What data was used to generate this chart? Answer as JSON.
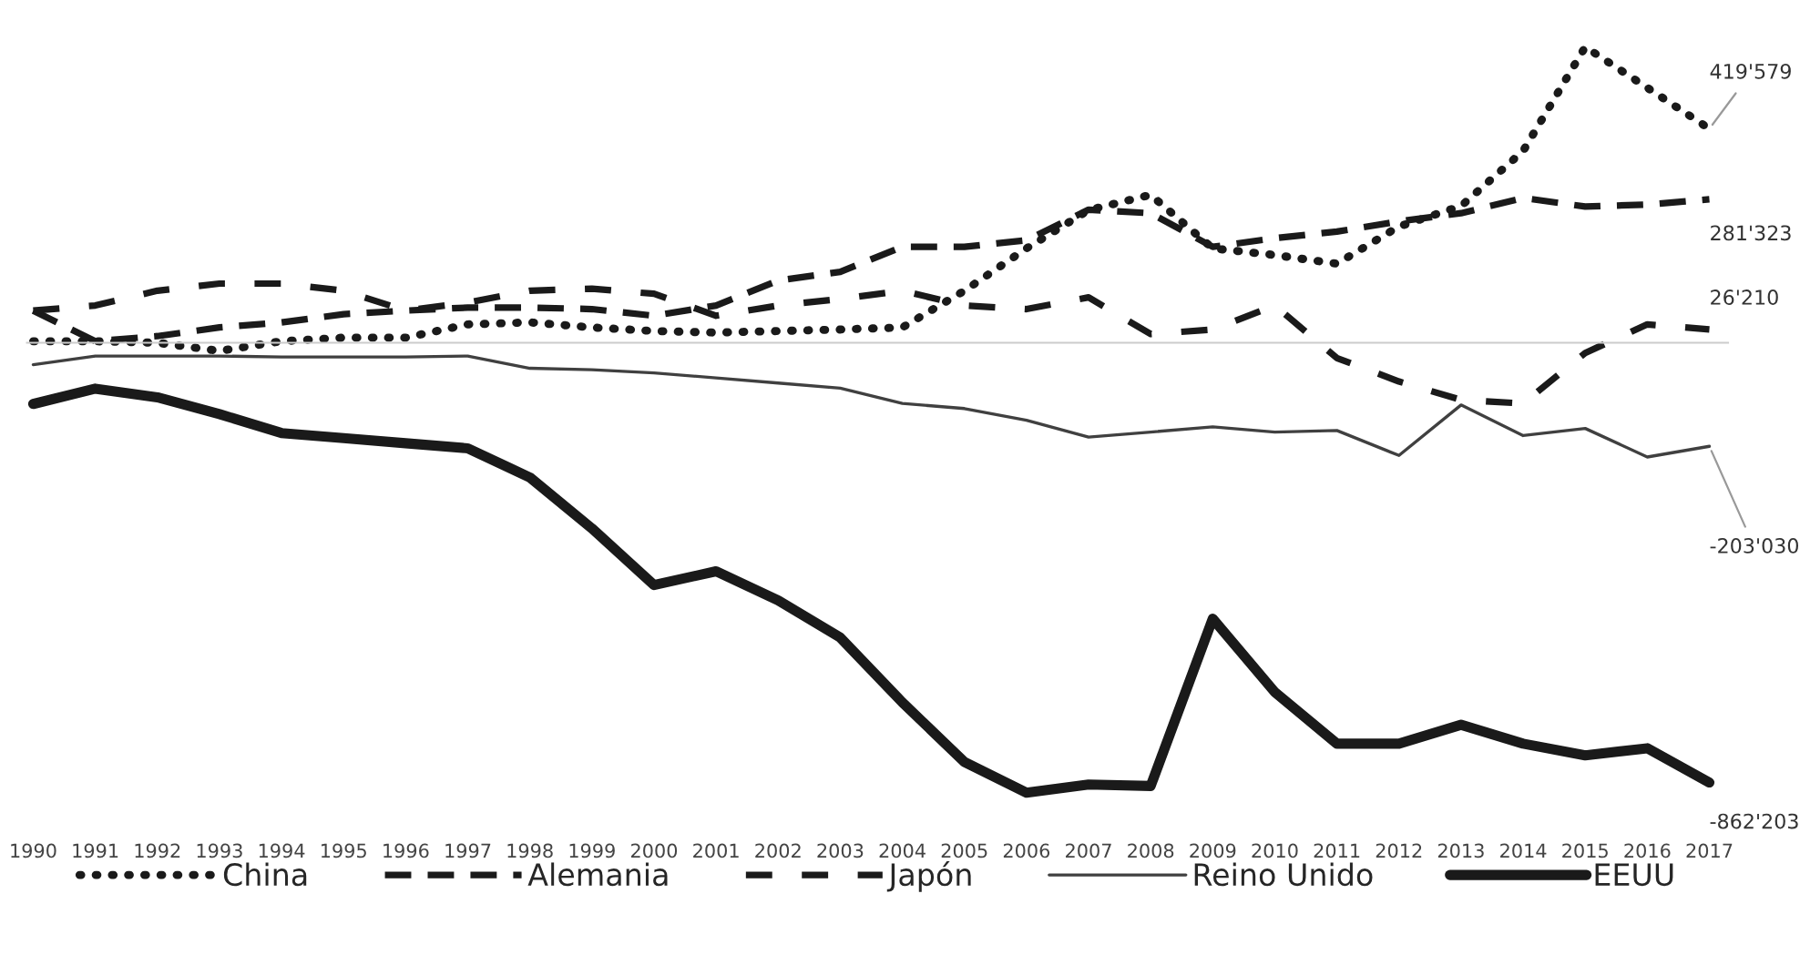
{
  "chart_data": {
    "type": "line",
    "categories": [
      "1990",
      "1991",
      "1992",
      "1993",
      "1994",
      "1995",
      "1996",
      "1997",
      "1998",
      "1999",
      "2000",
      "2001",
      "2002",
      "2003",
      "2004",
      "2005",
      "2006",
      "2007",
      "2008",
      "2009",
      "2010",
      "2011",
      "2012",
      "2013",
      "2014",
      "2015",
      "2016",
      "2017"
    ],
    "series": [
      {
        "name": "China",
        "color": "#1a1a1a",
        "line_style": "dotted",
        "values": [
          3000,
          3000,
          0,
          -16000,
          3000,
          10000,
          10000,
          36000,
          40000,
          30000,
          23000,
          20000,
          23000,
          26000,
          30000,
          102000,
          185000,
          260000,
          290000,
          185000,
          172000,
          155000,
          228000,
          268000,
          376000,
          580000,
          500000,
          419579
        ],
        "value_labels": [
          null,
          null,
          null,
          null,
          null,
          null,
          null,
          null,
          null,
          null,
          null,
          null,
          null,
          null,
          null,
          null,
          null,
          null,
          null,
          null,
          null,
          null,
          null,
          null,
          null,
          null,
          null,
          "419'579"
        ]
      },
      {
        "name": "Alemania",
        "color": "#1a1a1a",
        "line_style": "dashed",
        "values": [
          63000,
          3000,
          13000,
          30000,
          40000,
          56000,
          63000,
          69000,
          69000,
          66000,
          53000,
          73000,
          122000,
          139000,
          188000,
          188000,
          201000,
          261000,
          254000,
          188000,
          205000,
          218000,
          238000,
          254000,
          284000,
          267000,
          271000,
          281323
        ],
        "value_labels": [
          null,
          null,
          null,
          null,
          null,
          null,
          null,
          null,
          null,
          null,
          null,
          null,
          null,
          null,
          null,
          null,
          null,
          null,
          null,
          null,
          null,
          null,
          null,
          null,
          null,
          null,
          null,
          "281'323"
        ]
      },
      {
        "name": "Japón",
        "color": "#1a1a1a",
        "line_style": "dashed",
        "values": [
          63000,
          73000,
          102000,
          116000,
          116000,
          102000,
          63000,
          79000,
          102000,
          106000,
          96000,
          53000,
          73000,
          86000,
          102000,
          73000,
          66000,
          89000,
          17000,
          26000,
          73000,
          -30000,
          -76000,
          -112000,
          -119000,
          -20000,
          36000,
          26210
        ],
        "value_labels": [
          null,
          null,
          null,
          null,
          null,
          null,
          null,
          null,
          null,
          null,
          null,
          null,
          null,
          null,
          null,
          null,
          null,
          null,
          null,
          null,
          null,
          null,
          null,
          null,
          null,
          null,
          null,
          "26'210"
        ]
      },
      {
        "name": "Reino Unido",
        "color": "#404040",
        "line_style": "solid",
        "values": [
          -43000,
          -26000,
          -26000,
          -26000,
          -28000,
          -28000,
          -28000,
          -26000,
          -50000,
          -53000,
          -59000,
          -69000,
          -79000,
          -89000,
          -119000,
          -129000,
          -152000,
          -185000,
          -175000,
          -165000,
          -175000,
          -172000,
          -221000,
          -122000,
          -182000,
          -168000,
          -224000,
          -203030
        ],
        "value_labels": [
          null,
          null,
          null,
          null,
          null,
          null,
          null,
          null,
          null,
          null,
          null,
          null,
          null,
          null,
          null,
          null,
          null,
          null,
          null,
          null,
          null,
          null,
          null,
          null,
          null,
          null,
          null,
          "-203'030"
        ]
      },
      {
        "name": "EEUU",
        "color": "#1a1a1a",
        "line_style": "solid",
        "values": [
          -120000,
          -90000,
          -107000,
          -140000,
          -177000,
          -187000,
          -197000,
          -207000,
          -264000,
          -364000,
          -475000,
          -448000,
          -505000,
          -578000,
          -705000,
          -822000,
          -882000,
          -866000,
          -869000,
          -541000,
          -685000,
          -786000,
          -786000,
          -749000,
          -786000,
          -809000,
          -795000,
          -862203
        ],
        "value_labels": [
          null,
          null,
          null,
          null,
          null,
          null,
          null,
          null,
          null,
          null,
          null,
          null,
          null,
          null,
          null,
          null,
          null,
          null,
          null,
          null,
          null,
          null,
          null,
          null,
          null,
          null,
          null,
          "-862'203"
        ]
      }
    ],
    "legend": "bottom",
    "grid": false,
    "marker": "none"
  }
}
